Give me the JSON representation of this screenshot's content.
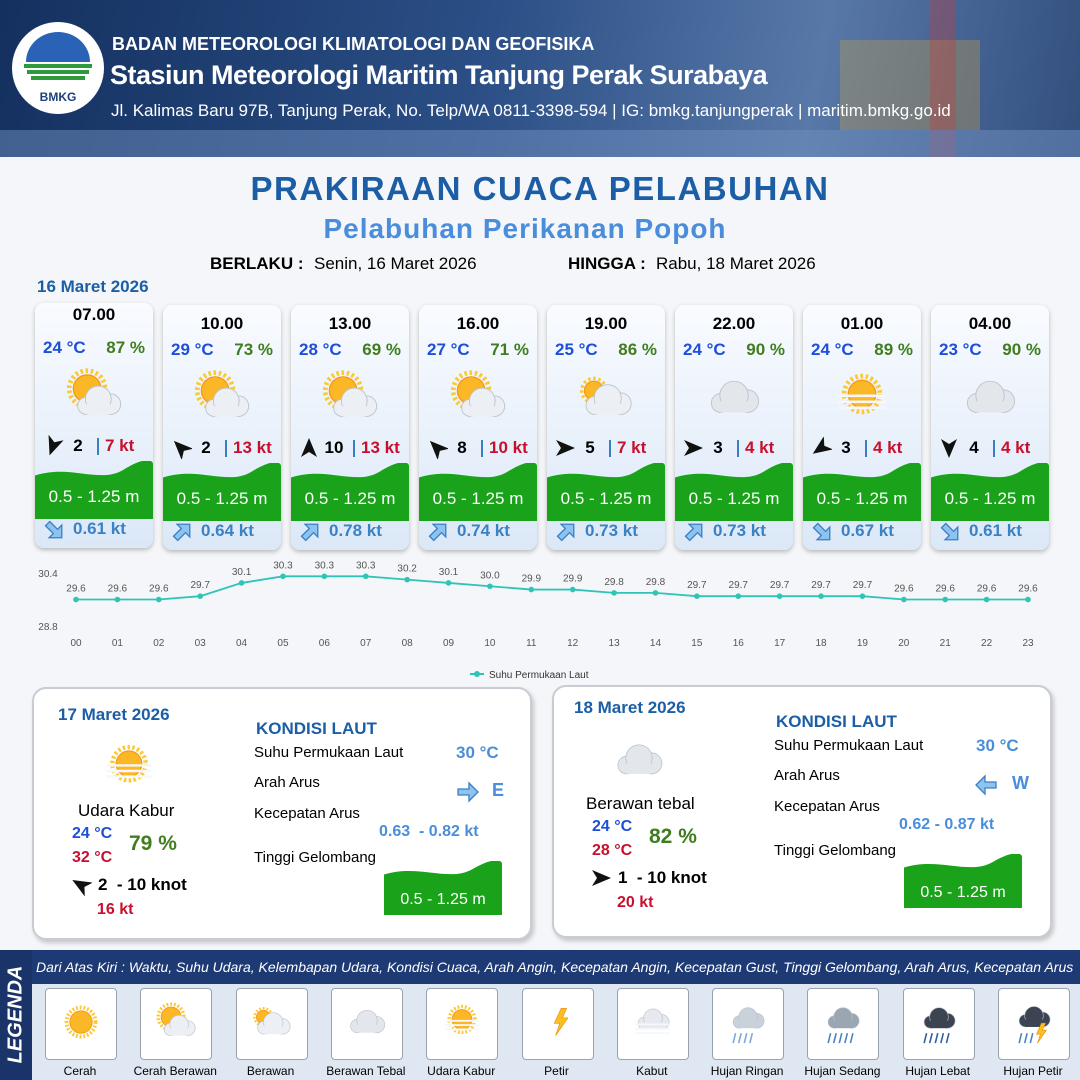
{
  "header": {
    "logo_text": "BMKG",
    "agency": "BADAN METEOROLOGI KLIMATOLOGI DAN GEOFISIKA",
    "station": "Stasiun Meteorologi Maritim Tanjung Perak Surabaya",
    "address": "Jl. Kalimas Baru 97B, Tanjung Perak, No. Telp/WA 0811-3398-594 | IG: bmkg.tanjungperak | maritim.bmkg.go.id"
  },
  "title": "PRAKIRAAN CUACA PELABUHAN",
  "subtitle": "Pelabuhan Perikanan Popoh",
  "validity": {
    "from_label": "BERLAKU :",
    "from": "Senin, 16 Maret 2026",
    "to_label": "HINGGA :",
    "to": "Rabu, 18 Maret 2026"
  },
  "forecast": {
    "date": "16 Maret 2026",
    "slots": [
      {
        "time": "07.00",
        "temp": "24 °C",
        "humidity": "87 %",
        "wind": "2",
        "gust": "7 kt",
        "wave": "0.5 - 1.25 m",
        "current": "0.61 kt"
      },
      {
        "time": "10.00",
        "temp": "29 °C",
        "humidity": "73 %",
        "wind": "2",
        "gust": "13 kt",
        "wave": "0.5 - 1.25 m",
        "current": "0.64 kt"
      },
      {
        "time": "13.00",
        "temp": "28 °C",
        "humidity": "69 %",
        "wind": "10",
        "gust": "13 kt",
        "wave": "0.5 - 1.25 m",
        "current": "0.78 kt"
      },
      {
        "time": "16.00",
        "temp": "27 °C",
        "humidity": "71 %",
        "wind": "8",
        "gust": "10 kt",
        "wave": "0.5 - 1.25 m",
        "current": "0.74 kt"
      },
      {
        "time": "19.00",
        "temp": "25 °C",
        "humidity": "86 %",
        "wind": "5",
        "gust": "7 kt",
        "wave": "0.5 - 1.25 m",
        "current": "0.73 kt"
      },
      {
        "time": "22.00",
        "temp": "24 °C",
        "humidity": "90 %",
        "wind": "3",
        "gust": "4 kt",
        "wave": "0.5 - 1.25 m",
        "current": "0.73 kt"
      },
      {
        "time": "01.00",
        "temp": "24 °C",
        "humidity": "89 %",
        "wind": "3",
        "gust": "4 kt",
        "wave": "0.5 - 1.25 m",
        "current": "0.67 kt"
      },
      {
        "time": "04.00",
        "temp": "23 °C",
        "humidity": "90 %",
        "wind": "4",
        "gust": "4 kt",
        "wave": "0.5 - 1.25 m",
        "current": "0.61 kt"
      }
    ]
  },
  "chart_data": {
    "type": "line",
    "categories": [
      "00",
      "01",
      "02",
      "03",
      "04",
      "05",
      "06",
      "07",
      "08",
      "09",
      "10",
      "11",
      "12",
      "13",
      "14",
      "15",
      "16",
      "17",
      "18",
      "19",
      "20",
      "21",
      "22",
      "23"
    ],
    "series": [
      {
        "name": "Suhu Permukaan Laut",
        "color": "#2ec4b6",
        "values": [
          29.6,
          29.6,
          29.6,
          29.7,
          30.1,
          30.3,
          30.3,
          30.3,
          30.2,
          30.1,
          30.0,
          29.9,
          29.9,
          29.8,
          29.8,
          29.7,
          29.7,
          29.7,
          29.7,
          29.7,
          29.6,
          29.6,
          29.6,
          29.6
        ],
        "value_labels": [
          "29.6",
          "29.6",
          "29.6",
          "29.7",
          "30.1",
          "30.3",
          "30.3",
          "30.3",
          "30.2",
          "30.1",
          "30.0",
          "29.9",
          "29.9",
          "29.8",
          "29.8",
          "29.7",
          "29.7",
          "29.7",
          "29.7",
          "29.7",
          "29.6",
          "29.6",
          "29.6",
          "29.6"
        ]
      }
    ],
    "ylim": [
      28.8,
      30.4
    ],
    "yticks": [
      28.8,
      30.4
    ],
    "grid": false,
    "legend": "bottom"
  },
  "daily": [
    {
      "date": "17 Maret 2026",
      "condition": "Udara Kabur",
      "temp_min": "24 °C",
      "temp_max": "32 °C",
      "humidity": "79 %",
      "wind": "2  - 10 knot",
      "gust": "16 kt",
      "sea": {
        "title": "KONDISI LAUT",
        "sst_label": "Suhu Permukaan Laut",
        "sst": "30 °C",
        "dir_label": "Arah Arus",
        "dir": "E",
        "speed_label": "Kecepatan Arus",
        "speed": "0.63  - 0.82 kt",
        "wave_label": "Tinggi Gelombang",
        "wave": "0.5 - 1.25 m"
      }
    },
    {
      "date": "18 Maret 2026",
      "condition": "Berawan tebal",
      "temp_min": "24 °C",
      "temp_max": "28 °C",
      "humidity": "82 %",
      "wind": "1  - 10 knot",
      "gust": "20 kt",
      "sea": {
        "title": "KONDISI LAUT",
        "sst_label": "Suhu Permukaan Laut",
        "sst": "30 °C",
        "dir_label": "Arah Arus",
        "dir": "W",
        "speed_label": "Kecepatan Arus",
        "speed": "0.62 - 0.87 kt",
        "wave_label": "Tinggi Gelombang",
        "wave": "0.5 - 1.25 m"
      }
    }
  ],
  "legend": {
    "title": "LEGENDA",
    "description": "Dari Atas Kiri : Waktu, Suhu Udara, Kelembapan Udara, Kondisi Cuaca, Arah Angin, Kecepatan Angin, Kecepatan Gust, Tinggi Gelombang, Arah Arus, Kecepatan Arus",
    "items": [
      "Cerah",
      "Cerah Berawan",
      "Berawan",
      "Berawan Tebal",
      "Udara Kabur",
      "Petir",
      "Kabut",
      "Hujan Ringan",
      "Hujan Sedang",
      "Hujan Lebat",
      "Hujan Petir"
    ]
  }
}
